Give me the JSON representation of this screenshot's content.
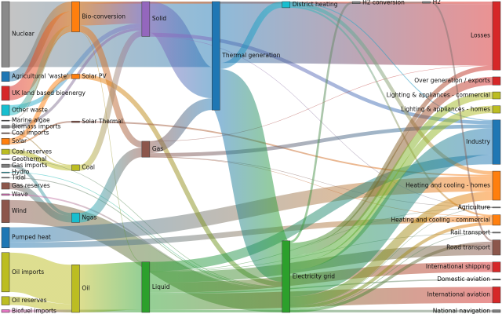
{
  "chart_data": {
    "type": "sankey",
    "nodes": [
      {
        "name": "Nuclear",
        "color": "#8a8a8a"
      },
      {
        "name": "Agricultural 'waste'",
        "color": "#1f77b4"
      },
      {
        "name": "UK land based bioenergy",
        "color": "#d62728"
      },
      {
        "name": "Other waste",
        "color": "#17becf"
      },
      {
        "name": "Marine algae",
        "color": "#555555"
      },
      {
        "name": "Biomass imports",
        "color": "#7f7f7f"
      },
      {
        "name": "Coal imports",
        "color": "#8c564b"
      },
      {
        "name": "Solar",
        "color": "#ff7f0e"
      },
      {
        "name": "Coal reserves",
        "color": "#bcbd22"
      },
      {
        "name": "Geothermal",
        "color": "#7f7f7f"
      },
      {
        "name": "Gas imports",
        "color": "#7f7f7f"
      },
      {
        "name": "Hydro",
        "color": "#17becf"
      },
      {
        "name": "Tidal",
        "color": "#7f7f7f"
      },
      {
        "name": "Gas reserves",
        "color": "#8c564b"
      },
      {
        "name": "Wave",
        "color": "#e377c2"
      },
      {
        "name": "Wind",
        "color": "#8c564b"
      },
      {
        "name": "Pumped heat",
        "color": "#1f77b4"
      },
      {
        "name": "Oil imports",
        "color": "#bcbd22"
      },
      {
        "name": "Oil reserves",
        "color": "#bcbd22"
      },
      {
        "name": "Biofuel imports",
        "color": "#e377c2"
      },
      {
        "name": "Bio-conversion",
        "color": "#ff7f0e"
      },
      {
        "name": "Solar PV",
        "color": "#ff7f0e"
      },
      {
        "name": "Solar Thermal",
        "color": "#8c564b"
      },
      {
        "name": "Coal",
        "color": "#bcbd22"
      },
      {
        "name": "Ngas",
        "color": "#17becf"
      },
      {
        "name": "Oil",
        "color": "#bcbd22"
      },
      {
        "name": "Solid",
        "color": "#9467bd"
      },
      {
        "name": "Gas",
        "color": "#8c564b"
      },
      {
        "name": "Liquid",
        "color": "#2ca02c"
      },
      {
        "name": "Thermal generation",
        "color": "#1f77b4"
      },
      {
        "name": "District heating",
        "color": "#17becf"
      },
      {
        "name": "Electricity grid",
        "color": "#2ca02c"
      },
      {
        "name": "H2 conversion",
        "color": "#7f7f7f"
      },
      {
        "name": "H2",
        "color": "#7f7f7f"
      },
      {
        "name": "Losses",
        "color": "#d62728"
      },
      {
        "name": "Over generation / exports",
        "color": "#d62728"
      },
      {
        "name": "Lighting & appliances - commercial",
        "color": "#bcbd22"
      },
      {
        "name": "Lighting & appliances - homes",
        "color": "#bcbd22"
      },
      {
        "name": "Industry",
        "color": "#1f77b4"
      },
      {
        "name": "Heating and cooling - homes",
        "color": "#ff7f0e"
      },
      {
        "name": "Agriculture",
        "color": "#7f7f7f"
      },
      {
        "name": "Heating and cooling - commercial",
        "color": "#ff7f0e"
      },
      {
        "name": "Rail transport",
        "color": "#7f7f7f"
      },
      {
        "name": "Road transport",
        "color": "#8c564b"
      },
      {
        "name": "International shipping",
        "color": "#d62728"
      },
      {
        "name": "Domestic aviation",
        "color": "#7f7f7f"
      },
      {
        "name": "International aviation",
        "color": "#d62728"
      },
      {
        "name": "National navigation",
        "color": "#7f7f7f"
      }
    ],
    "links": [
      {
        "source": 1,
        "target": 20,
        "value": 124.729
      },
      {
        "source": 20,
        "target": 28,
        "value": 0.597
      },
      {
        "source": 20,
        "target": 34,
        "value": 26.862
      },
      {
        "source": 20,
        "target": 26,
        "value": 280.322
      },
      {
        "source": 20,
        "target": 27,
        "value": 81.144
      },
      {
        "source": 19,
        "target": 28,
        "value": 35
      },
      {
        "source": 5,
        "target": 26,
        "value": 35
      },
      {
        "source": 6,
        "target": 23,
        "value": 11.606
      },
      {
        "source": 8,
        "target": 23,
        "value": 63.965
      },
      {
        "source": 23,
        "target": 26,
        "value": 75.571
      },
      {
        "source": 30,
        "target": 38,
        "value": 10.639
      },
      {
        "source": 30,
        "target": 41,
        "value": 22.505
      },
      {
        "source": 30,
        "target": 39,
        "value": 46.184
      },
      {
        "source": 31,
        "target": 35,
        "value": 104.453
      },
      {
        "source": 31,
        "target": 39,
        "value": 113.726
      },
      {
        "source": 31,
        "target": 32,
        "value": 27.14
      },
      {
        "source": 31,
        "target": 38,
        "value": 342.165
      },
      {
        "source": 31,
        "target": 43,
        "value": 37.797
      },
      {
        "source": 31,
        "target": 40,
        "value": 4.412
      },
      {
        "source": 31,
        "target": 41,
        "value": 40.858
      },
      {
        "source": 31,
        "target": 34,
        "value": 56.691
      },
      {
        "source": 31,
        "target": 42,
        "value": 7.863
      },
      {
        "source": 31,
        "target": 36,
        "value": 90.008
      },
      {
        "source": 31,
        "target": 37,
        "value": 93.494
      },
      {
        "source": 10,
        "target": 24,
        "value": 40.719
      },
      {
        "source": 13,
        "target": 24,
        "value": 82.233
      },
      {
        "source": 27,
        "target": 41,
        "value": 0.129
      },
      {
        "source": 27,
        "target": 34,
        "value": 1.401
      },
      {
        "source": 27,
        "target": 29,
        "value": 151.891
      },
      {
        "source": 27,
        "target": 40,
        "value": 2.096
      },
      {
        "source": 27,
        "target": 38,
        "value": 48.58
      },
      {
        "source": 9,
        "target": 31,
        "value": 7.013
      },
      {
        "source": 32,
        "target": 33,
        "value": 20.897
      },
      {
        "source": 32,
        "target": 34,
        "value": 6.242
      },
      {
        "source": 33,
        "target": 43,
        "value": 20.897
      },
      {
        "source": 11,
        "target": 31,
        "value": 6.995
      },
      {
        "source": 28,
        "target": 38,
        "value": 121.066
      },
      {
        "source": 28,
        "target": 44,
        "value": 128.69
      },
      {
        "source": 28,
        "target": 43,
        "value": 135.835
      },
      {
        "source": 28,
        "target": 45,
        "value": 14.458
      },
      {
        "source": 28,
        "target": 46,
        "value": 206.267
      },
      {
        "source": 28,
        "target": 40,
        "value": 3.64
      },
      {
        "source": 28,
        "target": 47,
        "value": 33.218
      },
      {
        "source": 28,
        "target": 42,
        "value": 4.413
      },
      {
        "source": 4,
        "target": 20,
        "value": 4.375
      },
      {
        "source": 24,
        "target": 27,
        "value": 122.952
      },
      {
        "source": 0,
        "target": 29,
        "value": 839.978
      },
      {
        "source": 17,
        "target": 25,
        "value": 504.287
      },
      {
        "source": 18,
        "target": 25,
        "value": 107.703
      },
      {
        "source": 25,
        "target": 28,
        "value": 611.99
      },
      {
        "source": 3,
        "target": 26,
        "value": 56.587
      },
      {
        "source": 3,
        "target": 20,
        "value": 77.81
      },
      {
        "source": 16,
        "target": 39,
        "value": 193.026
      },
      {
        "source": 16,
        "target": 41,
        "value": 70.672
      },
      {
        "source": 21,
        "target": 31,
        "value": 59.901
      },
      {
        "source": 22,
        "target": 39,
        "value": 19.263
      },
      {
        "source": 7,
        "target": 22,
        "value": 19.263
      },
      {
        "source": 7,
        "target": 21,
        "value": 59.901
      },
      {
        "source": 26,
        "target": 40,
        "value": 0.882
      },
      {
        "source": 26,
        "target": 29,
        "value": 400.12
      },
      {
        "source": 26,
        "target": 38,
        "value": 46.477
      },
      {
        "source": 29,
        "target": 31,
        "value": 525.531
      },
      {
        "source": 29,
        "target": 34,
        "value": 787.129
      },
      {
        "source": 29,
        "target": 30,
        "value": 79.329
      },
      {
        "source": 12,
        "target": 31,
        "value": 9.452
      },
      {
        "source": 2,
        "target": 20,
        "value": 182.01
      },
      {
        "source": 14,
        "target": 31,
        "value": 19.013
      },
      {
        "source": 15,
        "target": 31,
        "value": 289.366
      }
    ]
  }
}
